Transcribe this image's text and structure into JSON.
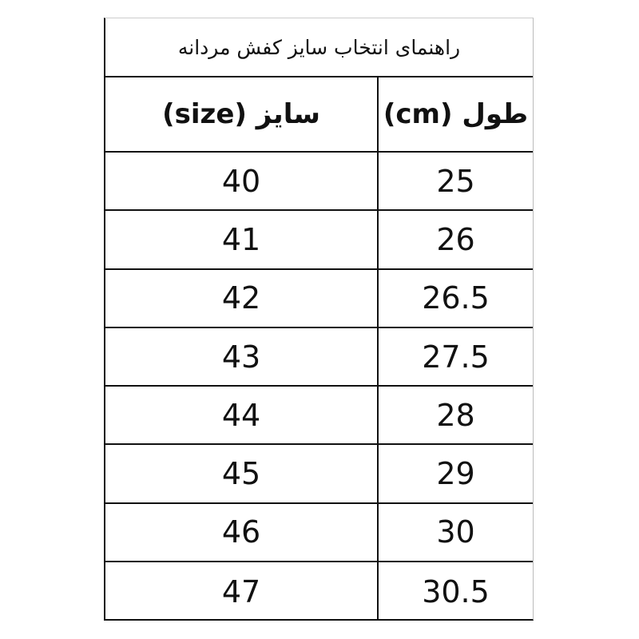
{
  "title": "راهنمای انتخاب سایز کفش مردانه",
  "headers": {
    "size": "سایز (size)",
    "length": "طول (cm)"
  },
  "rows": [
    {
      "size": "40",
      "length": "25"
    },
    {
      "size": "41",
      "length": "26"
    },
    {
      "size": "42",
      "length": "26.5"
    },
    {
      "size": "43",
      "length": "27.5"
    },
    {
      "size": "44",
      "length": "28"
    },
    {
      "size": "45",
      "length": "29"
    },
    {
      "size": "46",
      "length": "30"
    },
    {
      "size": "47",
      "length": "30.5"
    }
  ]
}
